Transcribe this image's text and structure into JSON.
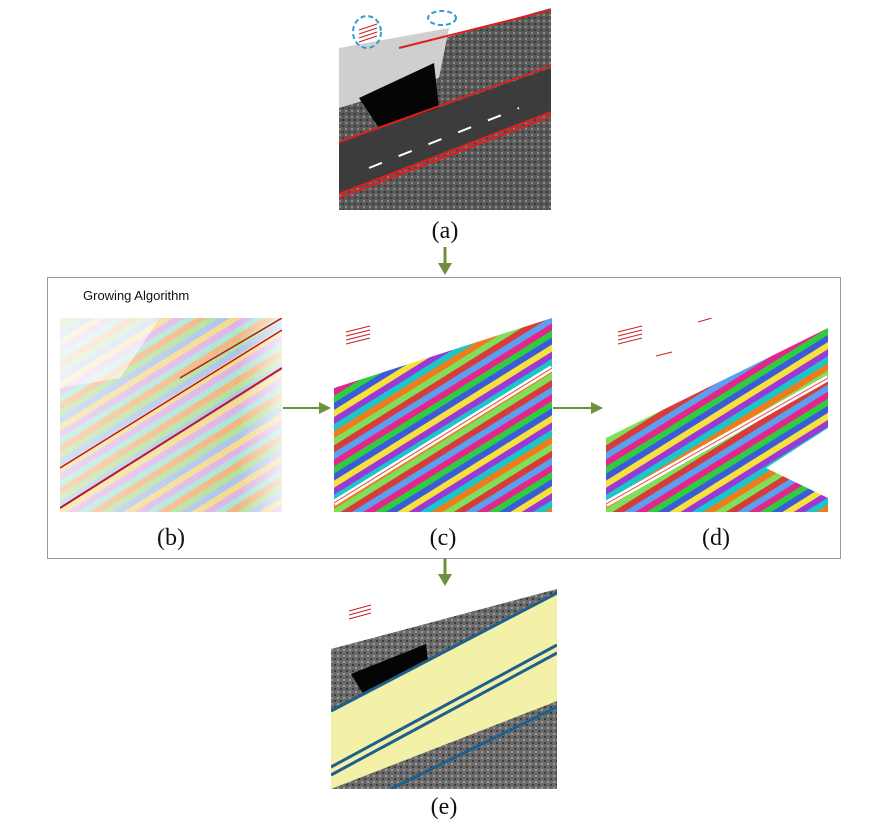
{
  "figure": {
    "group_title": "Growing Algorithm",
    "captions": {
      "a": "(a)",
      "b": "(b)",
      "c": "(c)",
      "d": "(d)",
      "e": "(e)"
    }
  },
  "colors": {
    "arrow": "#6e8f3c",
    "road_fill": "#f3f1a8",
    "edge_line": "#1f5f8c",
    "boundary_red": "#e01e1e",
    "annotation_blue": "#2a9fd6"
  }
}
